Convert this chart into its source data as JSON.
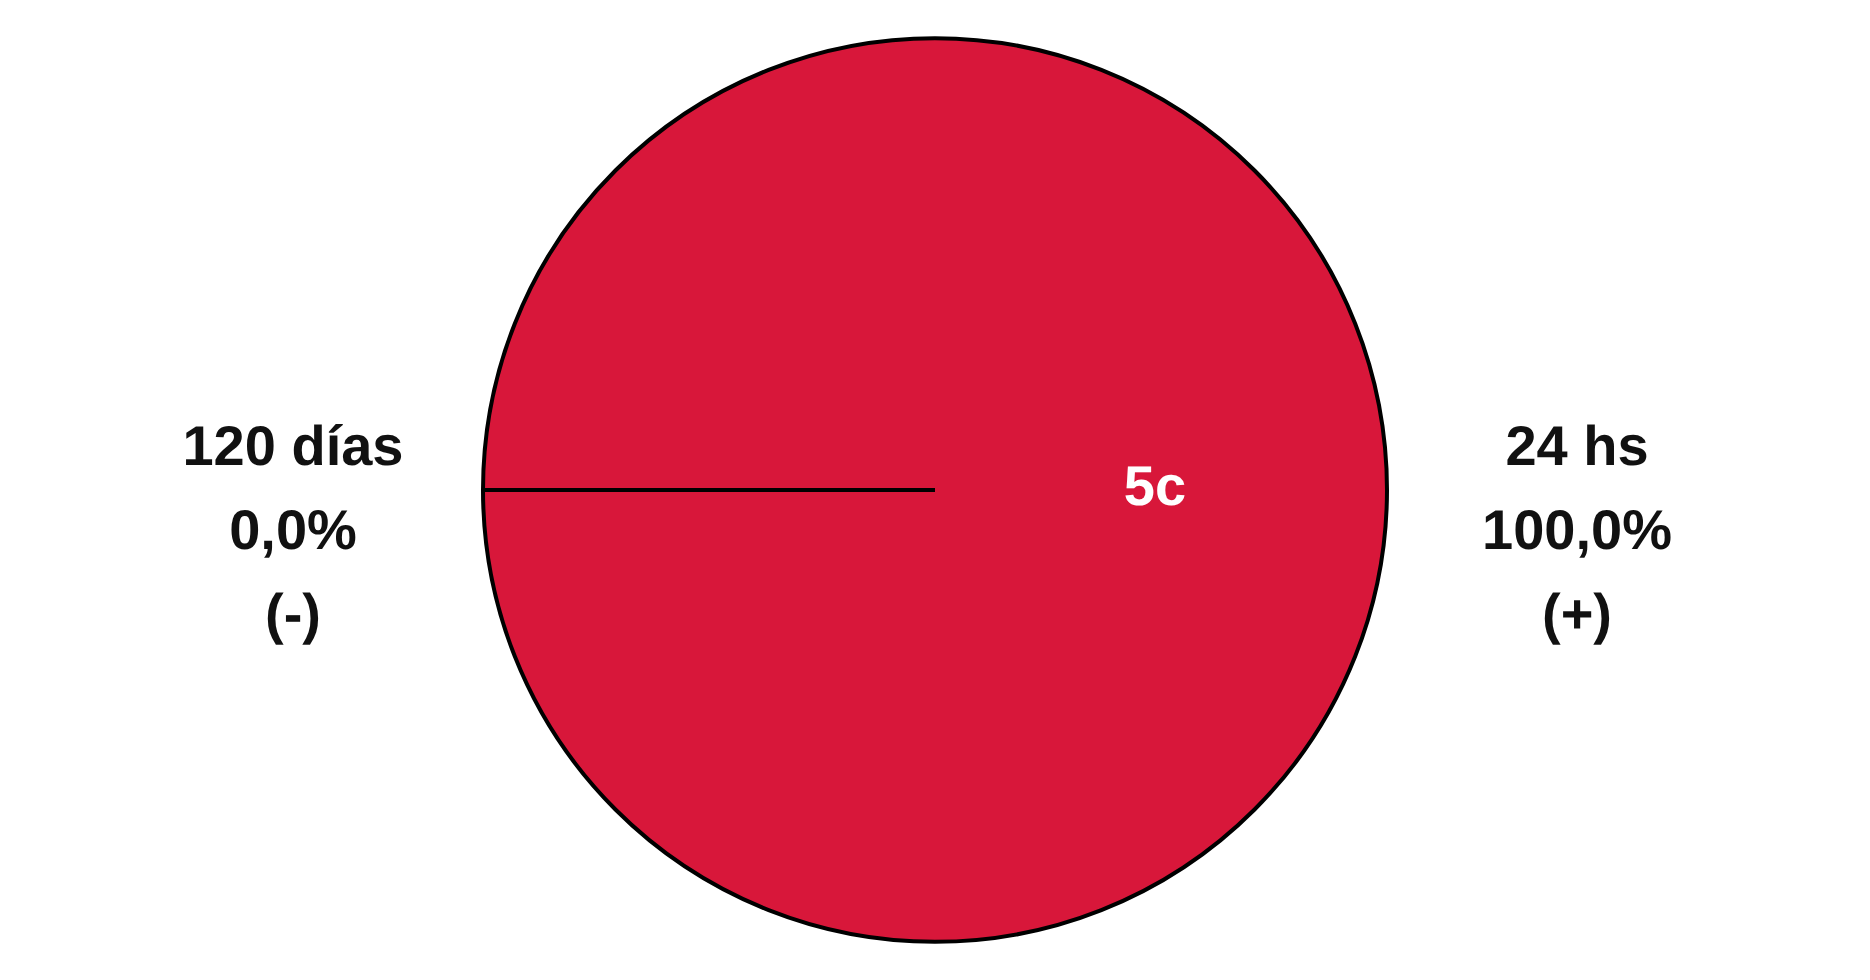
{
  "chart_data": {
    "type": "pie",
    "categories": [
      "120 días",
      "24 hs"
    ],
    "values": [
      0,
      100
    ],
    "value_labels": [
      "0,0%",
      "100,0%"
    ],
    "colors": [
      "#d8173a",
      "#d8173a"
    ],
    "annotations": [
      "5c",
      "(-)",
      "(+)"
    ],
    "legend": false
  }
}
